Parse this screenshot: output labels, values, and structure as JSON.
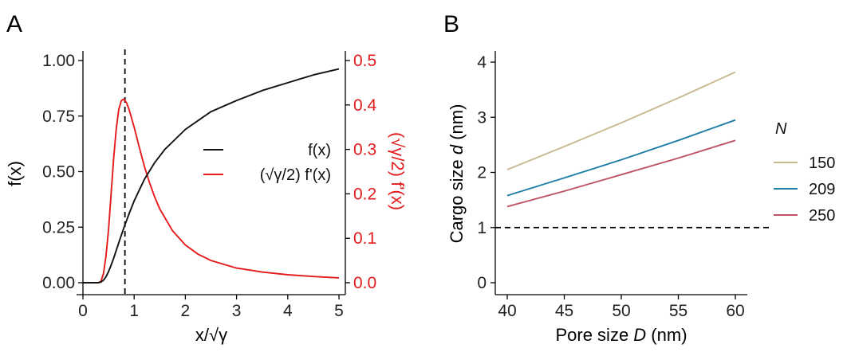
{
  "colors": {
    "black": "#111111",
    "red": "#e41a1c",
    "n150": "#c8b98f",
    "n209": "#1f7ea8",
    "n250": "#bd5363"
  },
  "chart_data": [
    {
      "panel": "A",
      "type": "line",
      "xlabel": "x/√γ",
      "ylabel_left": "f(x)",
      "ylabel_right": "(√γ/2) f'(x)",
      "xlim": [
        0,
        5
      ],
      "ylim_left": [
        0,
        1
      ],
      "ylim_right": [
        0,
        0.5
      ],
      "xticks": [
        0,
        1,
        2,
        3,
        4,
        5
      ],
      "yticks_left": [
        "0.00",
        "0.25",
        "0.50",
        "0.75",
        "1.00"
      ],
      "yticks_right": [
        "0.0",
        "0.1",
        "0.2",
        "0.3",
        "0.4",
        "0.5"
      ],
      "vline_x": 0.82,
      "legend": [
        {
          "label": "f(x)",
          "color": "#111111"
        },
        {
          "label": "(√γ/2) f'(x)",
          "color": "#e41a1c"
        }
      ],
      "series": [
        {
          "name": "f(x)",
          "axis": "left",
          "color": "#111111",
          "x": [
            0,
            0.2,
            0.3,
            0.35,
            0.4,
            0.45,
            0.5,
            0.55,
            0.6,
            0.7,
            0.8,
            0.9,
            1.0,
            1.2,
            1.4,
            1.6,
            1.8,
            2.0,
            2.25,
            2.5,
            3.0,
            3.5,
            4.0,
            4.5,
            5.0
          ],
          "y": [
            0,
            0,
            0.0004,
            0.003,
            0.011,
            0.027,
            0.05,
            0.079,
            0.11,
            0.18,
            0.248,
            0.31,
            0.368,
            0.465,
            0.54,
            0.6,
            0.645,
            0.69,
            0.73,
            0.77,
            0.82,
            0.865,
            0.9,
            0.935,
            0.962
          ]
        },
        {
          "name": "(√γ/2) f'(x)",
          "axis": "right",
          "color": "#e41a1c",
          "x": [
            0,
            0.3,
            0.35,
            0.4,
            0.45,
            0.5,
            0.55,
            0.6,
            0.65,
            0.7,
            0.75,
            0.8,
            0.85,
            0.9,
            1.0,
            1.1,
            1.2,
            1.3,
            1.4,
            1.5,
            1.75,
            2.0,
            2.25,
            2.5,
            3.0,
            3.5,
            4.0,
            4.5,
            5.0
          ],
          "y": [
            0,
            0,
            0.003,
            0.02,
            0.06,
            0.12,
            0.2,
            0.28,
            0.345,
            0.39,
            0.41,
            0.413,
            0.405,
            0.39,
            0.35,
            0.305,
            0.262,
            0.225,
            0.193,
            0.166,
            0.117,
            0.085,
            0.064,
            0.05,
            0.033,
            0.024,
            0.018,
            0.014,
            0.011
          ]
        }
      ]
    },
    {
      "panel": "B",
      "type": "line",
      "xlabel_prefix": "Pore size ",
      "xlabel_var": "D",
      "xlabel_suffix": " (nm)",
      "ylabel_prefix": "Cargo size ",
      "ylabel_var": "d",
      "ylabel_suffix": " (nm)",
      "xlim": [
        40,
        60
      ],
      "ylim": [
        0,
        4
      ],
      "xticks": [
        40,
        45,
        50,
        55,
        60
      ],
      "yticks": [
        0,
        1,
        2,
        3,
        4
      ],
      "hline_y": 1,
      "legend_title": "N",
      "series": [
        {
          "name": "150",
          "color": "#c8b98f",
          "x": [
            40,
            45,
            50,
            55,
            60
          ],
          "y": [
            2.05,
            2.47,
            2.9,
            3.35,
            3.82
          ]
        },
        {
          "name": "209",
          "color": "#1f7ea8",
          "x": [
            40,
            45,
            50,
            55,
            60
          ],
          "y": [
            1.58,
            1.9,
            2.23,
            2.58,
            2.95
          ]
        },
        {
          "name": "250",
          "color": "#bd5363",
          "x": [
            40,
            45,
            50,
            55,
            60
          ],
          "y": [
            1.38,
            1.66,
            1.96,
            2.26,
            2.58
          ]
        }
      ]
    }
  ]
}
